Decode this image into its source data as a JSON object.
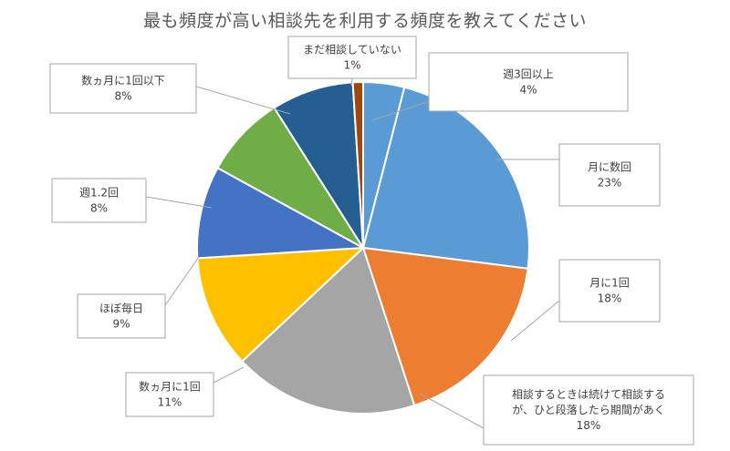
{
  "chart_data": {
    "type": "pie",
    "title": "最も頻度が高い相談先を利用する頻度を教えてください",
    "start_angle_deg": 0,
    "direction": "clockwise",
    "slices": [
      {
        "label": "週3回以上",
        "value": 4,
        "value_label": "4%",
        "color": "#5b9bd5"
      },
      {
        "label": "月に数回",
        "value": 23,
        "value_label": "23%",
        "color": "#5b9bd5"
      },
      {
        "label": "月に1回",
        "value": 18,
        "value_label": "18%",
        "color": "#ed7d31"
      },
      {
        "label": [
          "相談するときは続けて相談する",
          "が、ひと段落したら期間があく"
        ],
        "value": 18,
        "value_label": "18%",
        "color": "#a5a5a5"
      },
      {
        "label": "数ヵ月に1回",
        "value": 11,
        "value_label": "11%",
        "color": "#ffc000"
      },
      {
        "label": "ほぼ毎日",
        "value": 9,
        "value_label": "9%",
        "color": "#4472c4"
      },
      {
        "label": "週1.2回",
        "value": 8,
        "value_label": "8%",
        "color": "#70ad47"
      },
      {
        "label": "数ヵ月に1回以下",
        "value": 8,
        "value_label": "8%",
        "color": "#255e91"
      },
      {
        "label": "まだ相談していない",
        "value": 1,
        "value_label": "1%",
        "color": "#9e480e"
      }
    ],
    "legend": "none",
    "data_labels": "callouts with category name and percentage"
  }
}
